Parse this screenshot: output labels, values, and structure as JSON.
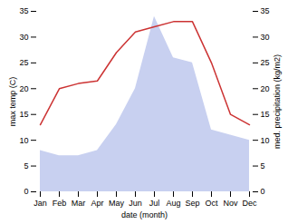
{
  "chart_data": {
    "type": "line",
    "categories": [
      "Jan",
      "Feb",
      "Mar",
      "Apr",
      "May",
      "Jun",
      "Jul",
      "Aug",
      "Sep",
      "Oct",
      "Nov",
      "Dec"
    ],
    "series": [
      {
        "type": "area",
        "color": "#c8d0f0",
        "values": [
          8,
          7,
          7,
          8,
          13,
          20,
          34,
          26,
          25,
          12,
          11,
          10
        ]
      },
      {
        "type": "line",
        "color": "#cc3333",
        "values": [
          13,
          20,
          21,
          21.5,
          27,
          31,
          32,
          33,
          33,
          25,
          15,
          13
        ]
      }
    ],
    "xlabel": "date (month)",
    "ylabel": "max temp (C)",
    "y2label": "med. precipitation (kg/m2)",
    "ylim": [
      0,
      35
    ],
    "yticks": [
      0,
      5,
      10,
      15,
      20,
      25,
      30,
      35
    ],
    "y2lim": [
      0,
      35
    ],
    "y2ticks": [
      0,
      5,
      10,
      15,
      20,
      25,
      30,
      35
    ],
    "grid": false
  }
}
